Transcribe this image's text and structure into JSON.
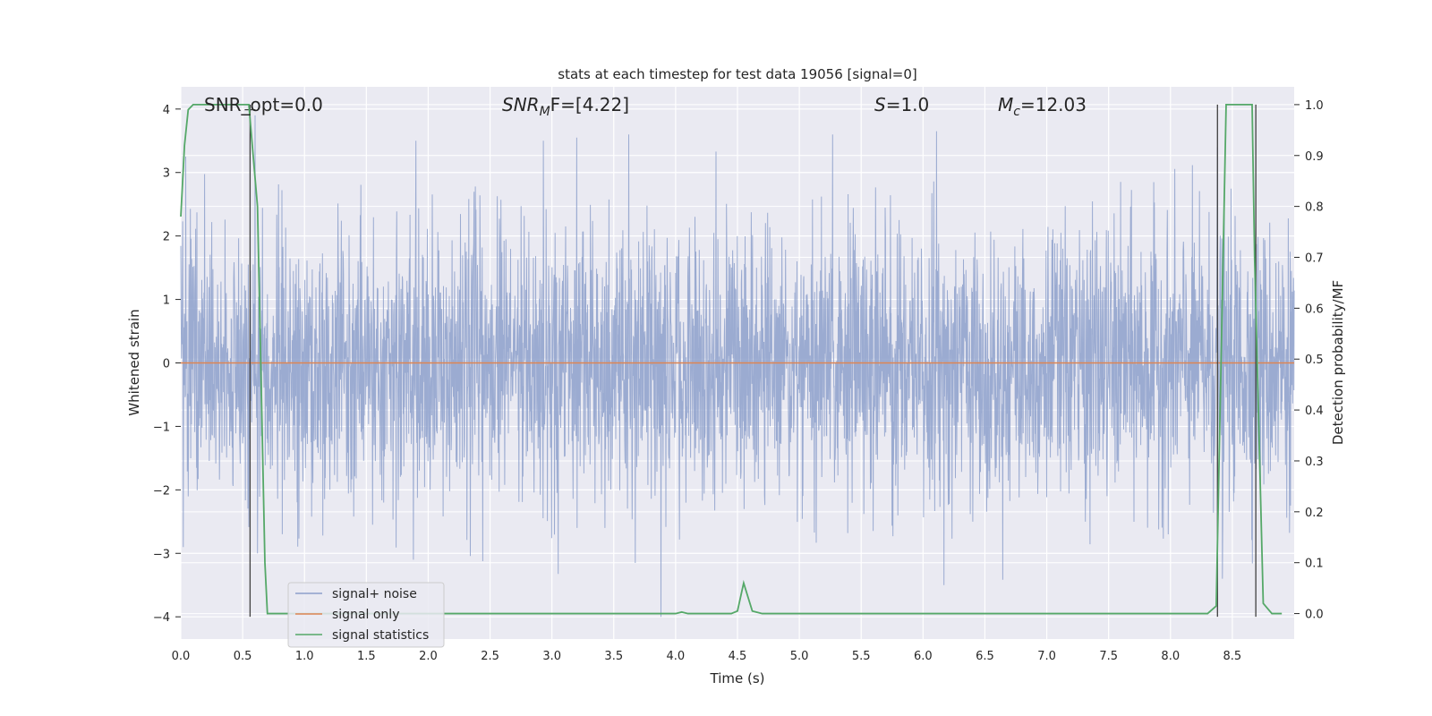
{
  "chart_data": {
    "type": "line",
    "title": "stats at each timestep for test data 19056 [signal=0]",
    "xlabel": "Time (s)",
    "ylabel": "Whitened strain",
    "y2label": "Detection probability/MF",
    "xlim": [
      0.0,
      9.0
    ],
    "ylim": [
      -4.35,
      4.35
    ],
    "y2lim": [
      -0.05,
      1.035
    ],
    "x_ticks": [
      0.0,
      0.5,
      1.0,
      1.5,
      2.0,
      2.5,
      3.0,
      3.5,
      4.0,
      4.5,
      5.0,
      5.5,
      6.0,
      6.5,
      7.0,
      7.5,
      8.0,
      8.5
    ],
    "x_tick_labels": [
      "0.0",
      "0.5",
      "1.0",
      "1.5",
      "2.0",
      "2.5",
      "3.0",
      "3.5",
      "4.0",
      "4.5",
      "5.0",
      "5.5",
      "6.0",
      "6.5",
      "7.0",
      "7.5",
      "8.0",
      "8.5"
    ],
    "y_ticks": [
      -4,
      -3,
      -2,
      -1,
      0,
      1,
      2,
      3,
      4
    ],
    "y_tick_labels": [
      "−4",
      "−3",
      "−2",
      "−1",
      "0",
      "1",
      "2",
      "3",
      "4"
    ],
    "y2_ticks": [
      0.0,
      0.1,
      0.2,
      0.3,
      0.4,
      0.5,
      0.6,
      0.7,
      0.8,
      0.9,
      1.0
    ],
    "y2_tick_labels": [
      "0.0",
      "0.1",
      "0.2",
      "0.3",
      "0.4",
      "0.5",
      "0.6",
      "0.7",
      "0.8",
      "0.9",
      "1.0"
    ],
    "grid": true,
    "legend_position": "lower-left",
    "colors": {
      "background": "#eaeaf2",
      "grid": "#ffffff",
      "noise": "#8da0cb",
      "signal_only": "#dd8452",
      "statistics": "#55a868",
      "markers": "#404040"
    },
    "series": [
      {
        "name": "signal+ noise",
        "axis": "left",
        "note_values": "random noise, band ±~1.6",
        "spikes": [
          {
            "x": 0.02,
            "y": -2.9
          },
          {
            "x": 0.04,
            "y": 3.25
          },
          {
            "x": 0.6,
            "y": 3.9
          },
          {
            "x": 0.62,
            "y": -3.0
          },
          {
            "x": 1.9,
            "y": 3.5
          },
          {
            "x": 1.88,
            "y": -3.1
          },
          {
            "x": 3.88,
            "y": -4.0
          },
          {
            "x": 3.2,
            "y": 3.55
          },
          {
            "x": 3.62,
            "y": 3.6
          },
          {
            "x": 5.27,
            "y": 3.6
          },
          {
            "x": 6.11,
            "y": 3.65
          },
          {
            "x": 6.17,
            "y": -3.5
          },
          {
            "x": 8.38,
            "y": 3.4
          },
          {
            "x": 8.42,
            "y": -3.4
          }
        ]
      },
      {
        "name": "signal only",
        "axis": "left",
        "x": [
          0.0,
          9.0
        ],
        "y": [
          0.0,
          0.0
        ]
      },
      {
        "name": "signal statistics",
        "axis": "right",
        "x": [
          0.0,
          0.03,
          0.06,
          0.1,
          0.55,
          0.62,
          0.68,
          0.7,
          4.0,
          4.05,
          4.1,
          4.45,
          4.5,
          4.55,
          4.62,
          4.7,
          8.3,
          8.37,
          8.45,
          8.66,
          8.68,
          8.75,
          8.82,
          8.9
        ],
        "y": [
          0.78,
          0.92,
          0.99,
          1.0,
          1.0,
          0.8,
          0.1,
          0.0,
          0.0,
          0.003,
          0.0,
          0.0,
          0.005,
          0.06,
          0.005,
          0.0,
          0.0,
          0.015,
          1.0,
          1.0,
          0.7,
          0.02,
          0.0,
          0.0
        ]
      }
    ],
    "vertical_lines": [
      0.56,
      8.38,
      8.69
    ],
    "annotations": [
      {
        "id": "snr-opt",
        "text": "SNR_opt=0.0"
      },
      {
        "id": "snr-mf",
        "text": "SNRMF=[4.22]"
      },
      {
        "id": "s",
        "text": "S=1.0"
      },
      {
        "id": "mc",
        "text": "Mc=12.03"
      }
    ]
  },
  "annotations": {
    "snr_opt": "SNR_opt=0.0",
    "snr_mf_base": "SNR",
    "snr_mf_sub": "M",
    "snr_mf_rest": "F=[4.22]",
    "s_var": "S",
    "s_rest": "=1.0",
    "mc_base": "M",
    "mc_sub": "c",
    "mc_rest": "=12.03"
  },
  "legend": {
    "items": [
      {
        "label": "signal+ noise",
        "color": "#8da0cb"
      },
      {
        "label": "signal only",
        "color": "#dd8452"
      },
      {
        "label": "signal statistics",
        "color": "#55a868"
      }
    ]
  }
}
